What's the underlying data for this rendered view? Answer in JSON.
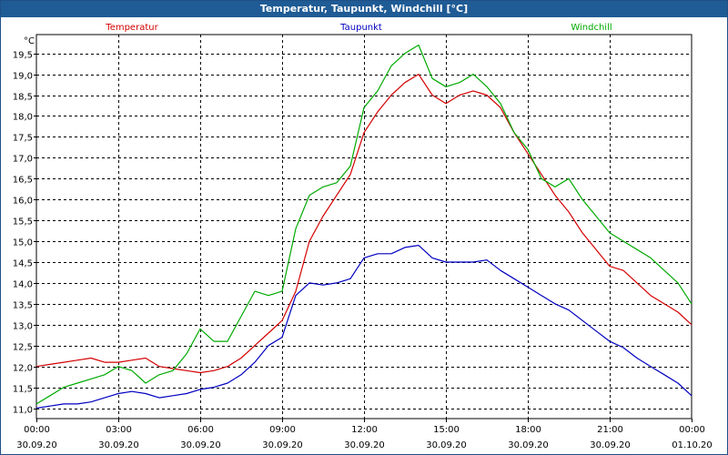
{
  "window": {
    "title": "Temperatur, Taupunkt, Windchill [°C]"
  },
  "chart_data": {
    "type": "line",
    "title": "Temperatur, Taupunkt, Windchill [°C]",
    "ylabel": "°C",
    "ylim": [
      10.75,
      19.95
    ],
    "yticks": [
      11.0,
      11.5,
      12.0,
      12.5,
      13.0,
      13.5,
      14.0,
      14.5,
      15.0,
      15.5,
      16.0,
      16.5,
      17.0,
      17.5,
      18.0,
      18.5,
      19.0,
      19.5
    ],
    "ytick_labels": [
      "11,0",
      "11,5",
      "12,0",
      "12,5",
      "13,0",
      "13,5",
      "14,0",
      "14,5",
      "15,0",
      "15,5",
      "16,0",
      "16,5",
      "17,0",
      "17,5",
      "18,0",
      "18,5",
      "19,0",
      "19,5"
    ],
    "xlim": [
      "2020-09-30 00:00",
      "2020-10-01 00:00"
    ],
    "xticks": [
      {
        "time": "00:00",
        "date": "30.09.20",
        "h": 0
      },
      {
        "time": "03:00",
        "date": "30.09.20",
        "h": 3
      },
      {
        "time": "06:00",
        "date": "30.09.20",
        "h": 6
      },
      {
        "time": "09:00",
        "date": "30.09.20",
        "h": 9
      },
      {
        "time": "12:00",
        "date": "30.09.20",
        "h": 12
      },
      {
        "time": "15:00",
        "date": "30.09.20",
        "h": 15
      },
      {
        "time": "18:00",
        "date": "30.09.20",
        "h": 18
      },
      {
        "time": "21:00",
        "date": "30.09.20",
        "h": 21
      },
      {
        "time": "00:00",
        "date": "01.10.20",
        "h": 24
      }
    ],
    "grid": true,
    "x": [
      0,
      0.5,
      1,
      1.5,
      2,
      2.5,
      3,
      3.5,
      4,
      4.5,
      5,
      5.5,
      6,
      6.5,
      7,
      7.5,
      8,
      8.5,
      9,
      9.5,
      10,
      10.5,
      11,
      11.5,
      12,
      12.5,
      13,
      13.5,
      14,
      14.5,
      15,
      15.5,
      16,
      16.5,
      17,
      17.5,
      18,
      18.5,
      19,
      19.5,
      20,
      20.5,
      21,
      21.5,
      22,
      22.5,
      23,
      23.5,
      24
    ],
    "series": [
      {
        "name": "Temperatur",
        "color": "#d40000",
        "values": [
          12.0,
          12.05,
          12.1,
          12.15,
          12.2,
          12.1,
          12.1,
          12.15,
          12.2,
          12.0,
          11.95,
          11.9,
          11.85,
          11.9,
          12.0,
          12.2,
          12.5,
          12.8,
          13.1,
          13.8,
          15.0,
          15.6,
          16.1,
          16.6,
          17.6,
          18.1,
          18.5,
          18.8,
          19.0,
          18.5,
          18.3,
          18.5,
          18.6,
          18.5,
          18.2,
          17.6,
          17.1,
          16.6,
          16.1,
          15.7,
          15.2,
          14.8,
          14.4,
          14.3,
          14.0,
          13.7,
          13.5,
          13.3,
          13.0
        ]
      },
      {
        "name": "Taupunkt",
        "color": "#0000c0",
        "values": [
          11.0,
          11.05,
          11.1,
          11.1,
          11.15,
          11.25,
          11.35,
          11.4,
          11.35,
          11.25,
          11.3,
          11.35,
          11.45,
          11.5,
          11.6,
          11.8,
          12.1,
          12.5,
          12.7,
          13.7,
          14.0,
          13.95,
          14.0,
          14.1,
          14.6,
          14.7,
          14.7,
          14.85,
          14.9,
          14.6,
          14.5,
          14.5,
          14.5,
          14.55,
          14.3,
          14.1,
          13.9,
          13.7,
          13.5,
          13.35,
          13.1,
          12.85,
          12.6,
          12.45,
          12.2,
          12.0,
          11.8,
          11.6,
          11.3
        ]
      },
      {
        "name": "Windchill",
        "color": "#00aa00",
        "values": [
          11.1,
          11.3,
          11.5,
          11.6,
          11.7,
          11.8,
          12.0,
          11.9,
          11.6,
          11.8,
          11.9,
          12.3,
          12.9,
          12.6,
          12.6,
          13.2,
          13.8,
          13.7,
          13.8,
          15.3,
          16.1,
          16.3,
          16.4,
          16.8,
          18.2,
          18.6,
          19.2,
          19.5,
          19.7,
          18.9,
          18.7,
          18.8,
          19.0,
          18.7,
          18.3,
          17.6,
          17.2,
          16.5,
          16.3,
          16.5,
          16.0,
          15.6,
          15.2,
          15.0,
          14.8,
          14.6,
          14.3,
          14.0,
          13.5
        ]
      }
    ]
  }
}
